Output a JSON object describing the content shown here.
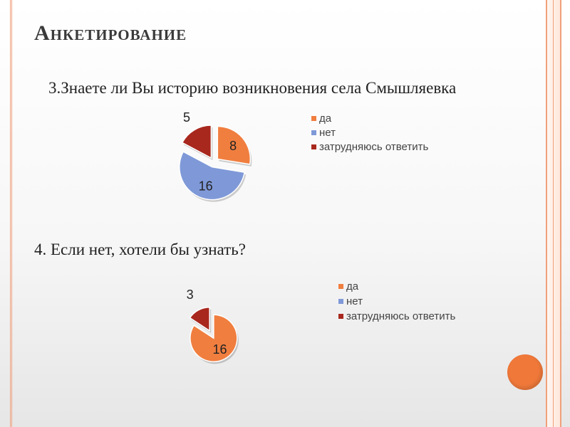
{
  "title": "Анкетирование",
  "chart_data": [
    {
      "type": "pie",
      "title": "3.Знаете ли Вы историю возникновения села Смышляевка",
      "categories": [
        "да",
        "нет",
        "затрудняюсь ответить"
      ],
      "values": [
        8,
        16,
        5
      ],
      "colors": [
        "#f07e3f",
        "#7f99d8",
        "#a8281e"
      ],
      "legend_placement": "right"
    },
    {
      "type": "pie",
      "title": "4. Если нет, хотели бы узнать?",
      "categories": [
        "да",
        "нет",
        "затрудняюсь ответить"
      ],
      "values": [
        16,
        0,
        3
      ],
      "colors": [
        "#f07e3f",
        "#7f99d8",
        "#a8281e"
      ],
      "legend_placement": "right"
    }
  ]
}
